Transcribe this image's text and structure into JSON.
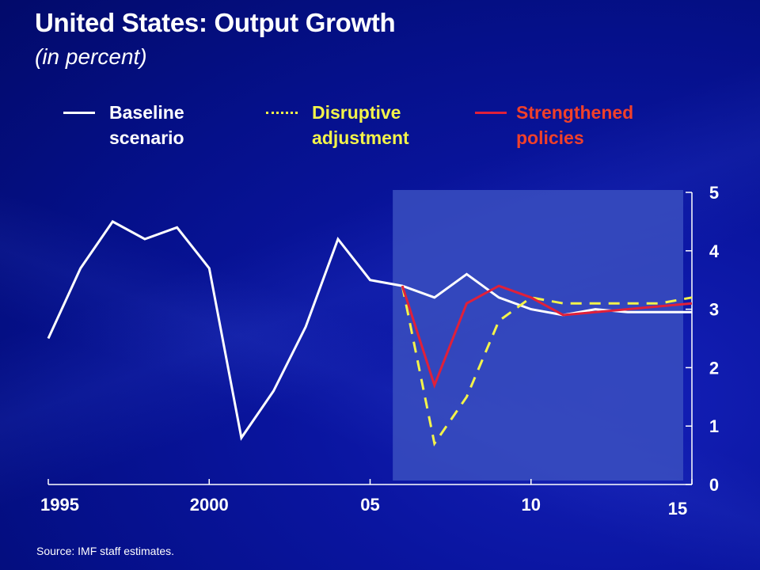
{
  "slide": {
    "title": "United States: Output Growth",
    "subtitle": "(in percent)",
    "source": "Source: IMF staff estimates."
  },
  "legend": [
    {
      "label": "Baseline\nscenario",
      "color": "#ffffff",
      "style": "solid"
    },
    {
      "label": "Disruptive\nadjustment",
      "color": "#f3f34a",
      "style": "dotted"
    },
    {
      "label": "Strengthened\npolicies",
      "color": "#e0203a",
      "style": "solid"
    }
  ],
  "chart_data": {
    "type": "line",
    "title": "United States: Output Growth",
    "subtitle": "(in percent)",
    "xlabel": "",
    "ylabel": "",
    "xlim": [
      1995,
      2015
    ],
    "ylim": [
      0,
      5
    ],
    "y_ticks": [
      0,
      1,
      2,
      3,
      4,
      5
    ],
    "x_ticks": [
      1995,
      2000,
      2005,
      2010,
      2015
    ],
    "x_tick_labels": [
      "1995",
      "2000",
      "05",
      "10",
      "15"
    ],
    "y_axis_side": "right",
    "grid": false,
    "legend_position": "top",
    "shaded_projection_region": {
      "from": 2006,
      "to": 2015,
      "color": "#3a4fc0"
    },
    "series": [
      {
        "name": "Baseline scenario",
        "color": "#ffffff",
        "dash": "solid",
        "x": [
          1995,
          1996,
          1997,
          1998,
          1999,
          2000,
          2001,
          2002,
          2003,
          2004,
          2005,
          2006,
          2007,
          2008,
          2009,
          2010,
          2011,
          2012,
          2013,
          2014,
          2015
        ],
        "values": [
          2.5,
          3.7,
          4.5,
          4.2,
          4.4,
          3.7,
          0.8,
          1.6,
          2.7,
          4.2,
          3.5,
          3.4,
          3.2,
          3.6,
          3.2,
          3.0,
          2.9,
          3.0,
          2.95,
          2.95,
          2.95
        ]
      },
      {
        "name": "Disruptive adjustment",
        "color": "#f3f34a",
        "dash": "dashed",
        "x": [
          2006,
          2007,
          2008,
          2009,
          2010,
          2011,
          2012,
          2013,
          2014,
          2015
        ],
        "values": [
          3.4,
          0.7,
          1.5,
          2.8,
          3.2,
          3.1,
          3.1,
          3.1,
          3.1,
          3.2
        ]
      },
      {
        "name": "Strengthened policies",
        "color": "#e0203a",
        "dash": "solid",
        "x": [
          2006,
          2007,
          2008,
          2009,
          2010,
          2011,
          2012,
          2013,
          2014,
          2015
        ],
        "values": [
          3.4,
          1.7,
          3.1,
          3.4,
          3.2,
          2.9,
          2.95,
          3.0,
          3.05,
          3.1
        ]
      }
    ]
  }
}
